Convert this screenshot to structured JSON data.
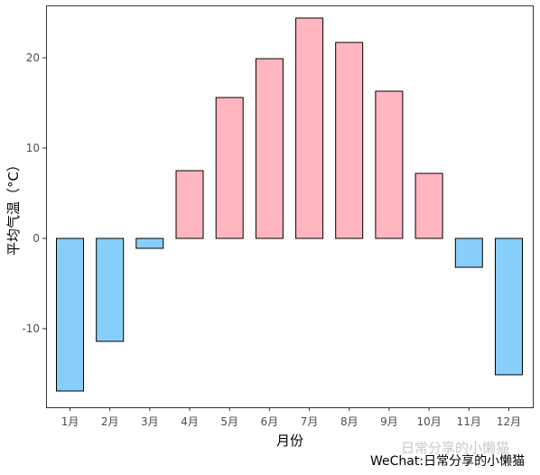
{
  "chart_data": {
    "type": "bar",
    "title": "",
    "xlabel": "月份",
    "ylabel": "平均气温（°C）",
    "categories": [
      "1月",
      "2月",
      "3月",
      "4月",
      "5月",
      "6月",
      "7月",
      "8月",
      "9月",
      "10月",
      "11月",
      "12月"
    ],
    "values": [
      -16.9,
      -11.4,
      -1.1,
      7.5,
      15.6,
      19.9,
      24.4,
      21.7,
      16.3,
      7.2,
      -3.2,
      -15.1
    ],
    "ylim": [
      -18.7,
      25.8
    ],
    "yticks": [
      -10,
      0,
      10,
      20
    ],
    "grid": false,
    "legend": "none",
    "colors": {
      "positive": "#ffb6c1",
      "negative": "#87cefa",
      "outline": "#000000"
    }
  },
  "watermark": {
    "ghost_text": "日常分享的小懒猫",
    "text": "WeChat:日常分享的小懒猫"
  }
}
